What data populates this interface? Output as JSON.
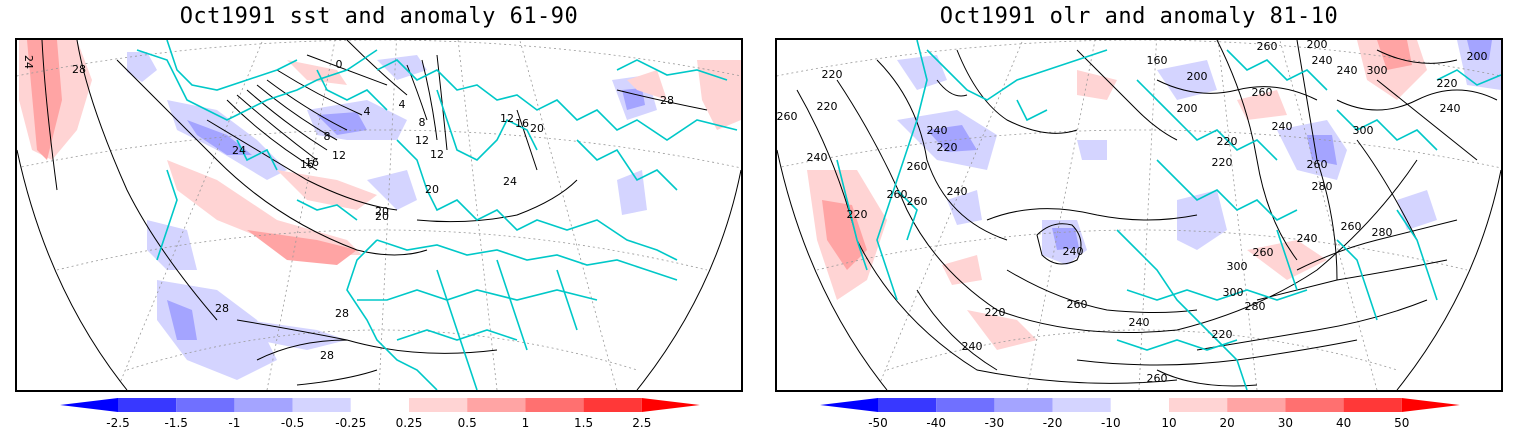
{
  "panels": [
    {
      "title": "Oct1991 sst and anomaly 61-90",
      "contour_labels": [
        "24",
        "28",
        "0",
        "4",
        "8",
        "12",
        "16",
        "20",
        "12",
        "16",
        "20",
        "24",
        "28",
        "28",
        "28",
        "28",
        "24",
        "20",
        "4",
        "8",
        "12",
        "16",
        "20",
        "12"
      ],
      "colorbar": {
        "ticks": [
          "-2.5",
          "-1.5",
          "-1",
          "-0.5",
          "-0.25",
          "0.25",
          "0.5",
          "1",
          "1.5",
          "2.5"
        ],
        "colors": [
          "#0000ff",
          "#3838ff",
          "#7070ff",
          "#a4a4ff",
          "#d4d4ff",
          "#ffffff",
          "#ffd4d4",
          "#ffa4a4",
          "#ff7070",
          "#ff3838",
          "#ff0000"
        ]
      }
    },
    {
      "title": "Oct1991 olr and anomaly 81-10",
      "contour_labels": [
        "260",
        "220",
        "240",
        "220",
        "260",
        "160",
        "200",
        "200",
        "200",
        "240",
        "240",
        "300",
        "220",
        "240",
        "200",
        "220",
        "220",
        "260",
        "240",
        "220",
        "240",
        "260",
        "260",
        "260",
        "240",
        "220",
        "280",
        "260",
        "300",
        "280",
        "260",
        "240",
        "240",
        "300",
        "280",
        "260",
        "240",
        "220",
        "260",
        "220",
        "240",
        "260",
        "300"
      ],
      "colorbar": {
        "ticks": [
          "-50",
          "-40",
          "-30",
          "-20",
          "-10",
          "10",
          "20",
          "30",
          "40",
          "50"
        ],
        "colors": [
          "#0000ff",
          "#3838ff",
          "#7070ff",
          "#a4a4ff",
          "#d4d4ff",
          "#ffffff",
          "#ffd4d4",
          "#ffa4a4",
          "#ff7070",
          "#ff3838",
          "#ff0000"
        ]
      }
    }
  ],
  "colors": {
    "coastline": "#00c8c8",
    "contour": "#000000",
    "grid": "#999999"
  }
}
